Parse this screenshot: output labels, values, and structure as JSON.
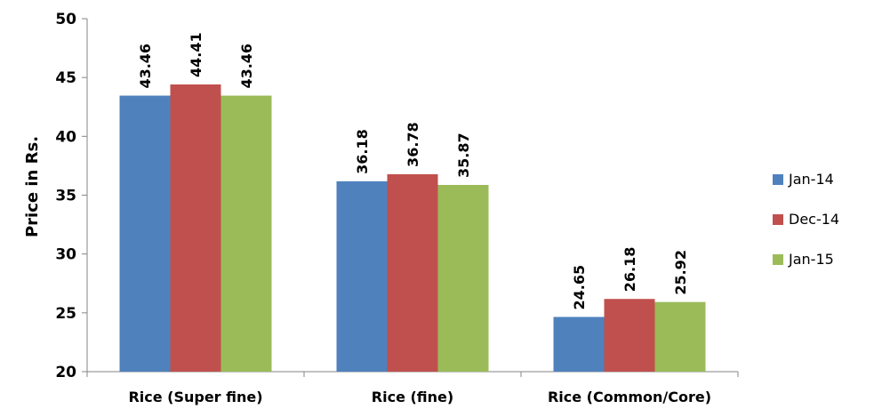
{
  "chart_data": {
    "type": "bar",
    "categories": [
      "Rice (Super fine)",
      "Rice (fine)",
      "Rice (Common/Core)"
    ],
    "series": [
      {
        "name": "Jan-14",
        "color": "#4F81BD",
        "values": [
          43.46,
          36.18,
          24.65
        ]
      },
      {
        "name": "Dec-14",
        "color": "#C0504D",
        "values": [
          44.41,
          36.78,
          26.18
        ]
      },
      {
        "name": "Jan-15",
        "color": "#9BBB59",
        "values": [
          43.46,
          35.87,
          25.92
        ]
      }
    ],
    "title": "",
    "xlabel": "",
    "ylabel": "Price in Rs.",
    "ylim": [
      20,
      50
    ],
    "yticks": [
      20,
      25,
      30,
      35,
      40,
      45,
      50
    ],
    "grid": false,
    "legend": "right"
  }
}
